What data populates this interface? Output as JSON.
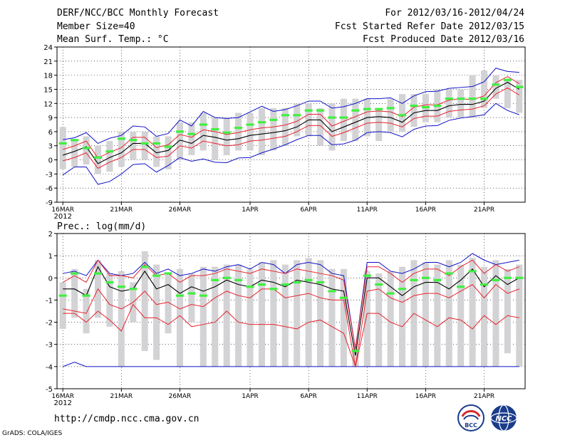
{
  "header": {
    "title": "DERF/NCC/BCC Monthly Forecast",
    "member_size": "Member Size=40",
    "variable": "Mean Surf. Temp.: °C",
    "period": "For 2012/03/16-2012/04/24",
    "started": "Fcst Started Refer Date 2012/03/15",
    "produced": "Fcst Produced Date 2012/03/16"
  },
  "footer": {
    "url": "http://cmdp.ncc.cma.gov.cn",
    "credit": "GrADS: COLA/IGES",
    "logo_left_text": "BCC",
    "logo_right_text": "NCC"
  },
  "colors": {
    "box": "#d3d3d6",
    "ensemble_mean": "#000000",
    "inner_band": "#e8232d",
    "outer_band": "#1010c8",
    "climatology": "#3ff03f",
    "grid": "#000000"
  },
  "chart_data": [
    {
      "type": "box_ensemble",
      "title": "Mean Surf. Temp.: °C",
      "ylim": [
        -9,
        24
      ],
      "yticks": [
        -9,
        -6,
        -3,
        0,
        3,
        6,
        9,
        12,
        15,
        18,
        21,
        24
      ],
      "xlim": [
        -0.5,
        39.5
      ],
      "xticks": [
        {
          "day": 0,
          "label": "16MAR",
          "sub": "2012"
        },
        {
          "day": 5,
          "label": "21MAR"
        },
        {
          "day": 10,
          "label": "26MAR"
        },
        {
          "day": 16,
          "label": "1APR"
        },
        {
          "day": 21,
          "label": "6APR"
        },
        {
          "day": 26,
          "label": "11APR"
        },
        {
          "day": 31,
          "label": "16APR"
        },
        {
          "day": 36,
          "label": "21APR"
        }
      ],
      "box_lo": [
        -2,
        -1.5,
        -1,
        -3,
        -2.5,
        -1.5,
        0,
        0,
        -1.5,
        -2,
        0,
        1,
        2,
        0,
        1,
        2,
        2,
        1,
        2,
        3,
        5,
        5,
        3,
        2,
        4,
        4,
        5,
        4,
        6,
        6,
        7,
        8,
        8,
        9,
        9,
        9,
        11,
        13,
        11,
        10
      ],
      "box_hi": [
        7,
        4,
        5,
        3,
        4,
        6,
        6,
        6,
        5,
        5,
        8,
        8,
        10,
        9,
        9,
        10,
        10,
        11,
        11,
        11,
        12,
        12,
        11,
        12,
        13,
        13,
        13,
        11,
        13,
        14,
        14,
        14,
        15,
        15,
        15,
        18,
        19,
        18,
        17,
        17
      ],
      "mean": [
        1,
        1.8,
        2.8,
        -0.8,
        0.5,
        1.5,
        3.5,
        3.5,
        1.5,
        2,
        4.2,
        3.5,
        5.2,
        4.8,
        4.2,
        4.5,
        5.2,
        5.5,
        5.8,
        6.2,
        7,
        8.5,
        8.5,
        6,
        7,
        8,
        9,
        9.2,
        9,
        8,
        10,
        10.5,
        10.5,
        11.5,
        11.8,
        11.8,
        12.5,
        15.2,
        16.5,
        15
      ],
      "inner_lo": [
        -0.2,
        0.5,
        1.5,
        -1.8,
        -0.5,
        0.5,
        2.2,
        2.2,
        0.5,
        0.8,
        3,
        2.5,
        4,
        3.5,
        3,
        3.2,
        4,
        4.2,
        4.6,
        5,
        6,
        7.3,
        7.3,
        5,
        5.8,
        6.8,
        7.8,
        8,
        7.8,
        7,
        8.8,
        9.3,
        9.3,
        10.3,
        10.6,
        10.8,
        11.5,
        14,
        15.3,
        13.8
      ],
      "inner_hi": [
        2.2,
        3,
        4,
        0.4,
        1.6,
        2.6,
        4.8,
        4.8,
        2.6,
        3.2,
        5.4,
        4.8,
        6.4,
        6,
        5.4,
        5.8,
        6.4,
        6.8,
        7,
        7.4,
        8.2,
        9.7,
        9.7,
        7.2,
        8.2,
        9.2,
        10.2,
        10.4,
        10.2,
        9.2,
        11.2,
        11.7,
        11.7,
        12.7,
        13,
        12.8,
        13.6,
        16.4,
        17.7,
        16.2
      ],
      "outer_lo": [
        -3.2,
        -1.5,
        -1.5,
        -5.2,
        -4.6,
        -3,
        -1,
        -0.8,
        -2.6,
        -1.2,
        0.5,
        -0.3,
        0.2,
        -0.5,
        -0.6,
        0.4,
        0.5,
        1.5,
        2.3,
        3.2,
        4.3,
        5.2,
        5.2,
        3.2,
        3.4,
        4.2,
        5.8,
        6,
        5.8,
        4.9,
        6.5,
        7.2,
        7.3,
        8.4,
        8.9,
        9.2,
        9.6,
        12,
        10.5,
        9.6
      ],
      "outer_hi": [
        4.3,
        4.7,
        5.8,
        3.5,
        4.6,
        5.2,
        7.2,
        7,
        5,
        5.6,
        8.5,
        7.2,
        10.3,
        9,
        8.8,
        9,
        10.2,
        11.4,
        10.3,
        10.7,
        11.5,
        12.5,
        12.5,
        11,
        11.3,
        12,
        13,
        13,
        13.2,
        12,
        13.6,
        14.5,
        14.6,
        15.2,
        15.4,
        15.6,
        16.6,
        19.5,
        18.8,
        18.6
      ],
      "climatology": [
        3.5,
        4.2,
        2.5,
        0.5,
        1.8,
        4.5,
        4.2,
        3.5,
        3.5,
        2.8,
        6,
        5.5,
        7.5,
        6.5,
        5.8,
        6.8,
        7.5,
        8,
        8.5,
        9.5,
        9.5,
        10.5,
        10.5,
        9,
        9,
        10.5,
        10.8,
        10.8,
        11,
        9.5,
        11.5,
        11.2,
        11.5,
        13,
        13,
        13,
        13,
        16,
        17,
        15.5
      ]
    },
    {
      "type": "box_ensemble",
      "title": "Prec.: log(mm/d)",
      "ylim": [
        -5,
        2
      ],
      "yticks": [
        -5,
        -4,
        -3,
        -2,
        -1,
        0,
        1,
        2
      ],
      "xlim": [
        -0.5,
        39.5
      ],
      "xticks": [
        {
          "day": 0,
          "label": "16MAR",
          "sub": "2012"
        },
        {
          "day": 5,
          "label": "21MAR"
        },
        {
          "day": 10,
          "label": "26MAR"
        },
        {
          "day": 16,
          "label": "1APR"
        },
        {
          "day": 21,
          "label": "6APR"
        },
        {
          "day": 26,
          "label": "11APR"
        },
        {
          "day": 31,
          "label": "16APR"
        },
        {
          "day": 36,
          "label": "21APR"
        }
      ],
      "box_lo": [
        -2.3,
        -1.8,
        -2.5,
        -1.8,
        -2.2,
        -4,
        -2,
        -3.3,
        -3.7,
        -2.5,
        -4,
        -2,
        -4,
        -4,
        -4,
        -4,
        -4,
        -4,
        -4,
        -4,
        -4,
        -4,
        -4,
        -4,
        -4,
        -4,
        -4,
        -4,
        -4,
        -4,
        -4,
        -4,
        -4,
        -4,
        -4,
        -4,
        -4,
        -4,
        -3.4,
        -4
      ],
      "box_hi": [
        -0.2,
        0.4,
        -0.5,
        0.8,
        0.2,
        0.3,
        -0.2,
        1.2,
        0.6,
        0.2,
        0.4,
        0.2,
        0.5,
        0.5,
        0.6,
        0.6,
        0.4,
        0.7,
        0.8,
        0.6,
        0.8,
        0.9,
        0.8,
        0.4,
        0.4,
        -3.2,
        0.3,
        0.2,
        0.3,
        0.5,
        0.8,
        0.7,
        0.6,
        0.8,
        0.6,
        0.9,
        0.5,
        0.8,
        0.4,
        0.6
      ],
      "mean": [
        -0.5,
        -0.5,
        -0.8,
        0.5,
        -0.4,
        -0.6,
        -0.5,
        0.3,
        -0.5,
        -0.3,
        -0.7,
        -0.4,
        -0.6,
        -0.4,
        -0.1,
        -0.3,
        -0.4,
        -0.1,
        -0.2,
        -0.4,
        -0.1,
        -0.2,
        -0.3,
        -0.5,
        -0.6,
        -3.5,
        0,
        0,
        -0.4,
        -0.8,
        -0.4,
        -0.2,
        -0.2,
        -0.5,
        -0.1,
        0.4,
        -0.4,
        0.1,
        -0.3,
        0
      ],
      "inner_lo": [
        -1.4,
        -1.5,
        -1.6,
        -0.5,
        -1.2,
        -1.4,
        -1.1,
        -0.6,
        -1.2,
        -1.1,
        -1.4,
        -1.2,
        -1.3,
        -0.9,
        -0.6,
        -0.8,
        -0.9,
        -0.5,
        -0.5,
        -0.9,
        -0.8,
        -0.7,
        -0.9,
        -1,
        -1,
        -4,
        -0.6,
        -0.5,
        -0.9,
        -1.1,
        -0.8,
        -0.7,
        -0.7,
        -0.9,
        -0.6,
        -0.3,
        -0.9,
        -0.3,
        -0.7,
        -0.5
      ],
      "inner_hi": [
        -0.2,
        0.1,
        -0.2,
        0.8,
        0.1,
        0.1,
        0,
        0.6,
        0.1,
        0.2,
        -0.2,
        0.1,
        0.1,
        0.2,
        0.4,
        0.3,
        0.2,
        0.4,
        0.3,
        0.2,
        0.4,
        0.3,
        0.2,
        0.1,
        -0.1,
        -3.2,
        0.5,
        0.5,
        0.2,
        -0.2,
        0.2,
        0.4,
        0.4,
        0.1,
        0.5,
        0.8,
        0.2,
        0.6,
        0.3,
        0.5
      ],
      "outer_lo": [
        -1.6,
        -1.6,
        -2,
        -1.5,
        -1.9,
        -2.4,
        -1.2,
        -1.8,
        -1.8,
        -2.1,
        -1.7,
        -2.2,
        -2.1,
        -2,
        -1.5,
        -2,
        -2.1,
        -2.1,
        -2.1,
        -2.2,
        -2.3,
        -2,
        -1.9,
        -2.2,
        -2.5,
        -4,
        -1.6,
        -1.6,
        -2,
        -2.2,
        -1.6,
        -1.9,
        -2.2,
        -1.8,
        -1.9,
        -2.3,
        -1.7,
        -2.1,
        -1.7,
        -1.8
      ],
      "outer_hi": [
        -4,
        -3.8,
        -4,
        -4,
        -4,
        -4,
        -4,
        -4,
        -4,
        -4,
        -4,
        -4,
        -4,
        -4,
        -4,
        -4,
        -4,
        -4,
        -4,
        -4,
        -4,
        -4,
        -4,
        -4,
        -4,
        -4,
        -4,
        -4,
        -4,
        -4,
        -4,
        -4,
        -4,
        -4,
        -4,
        -4,
        -4,
        -4,
        -4,
        -4
      ],
      "outer_top": [
        0.2,
        0.3,
        0.1,
        0.8,
        0.2,
        0.1,
        0.2,
        0.7,
        0.2,
        0.4,
        0.1,
        0.2,
        0.4,
        0.3,
        0.5,
        0.6,
        0.4,
        0.7,
        0.6,
        0.2,
        0.6,
        0.7,
        0.6,
        0.2,
        0.1,
        -3.2,
        0.7,
        0.7,
        0.3,
        0.2,
        0.4,
        0.7,
        0.7,
        0.5,
        0.7,
        1.1,
        0.8,
        0.6,
        0.7,
        0.8
      ],
      "climatology": [
        -0.8,
        0.2,
        -0.8,
        0.2,
        -0.2,
        -0.4,
        -0.5,
        0.5,
        0.1,
        0.2,
        -0.8,
        -0.7,
        -0.8,
        -0.1,
        0,
        -0.1,
        -0.4,
        -0.3,
        -0.5,
        -0.3,
        -0.2,
        -0.1,
        -0.2,
        -0.6,
        -0.9,
        -3.3,
        0.1,
        -0.3,
        -0.7,
        -0.5,
        -0.1,
        0,
        -0.1,
        0.2,
        -0.4,
        0.3,
        -0.3,
        -0.1,
        0,
        0
      ]
    }
  ],
  "axis_labels": {
    "x_label": "Prec.: log(mm/d)"
  }
}
